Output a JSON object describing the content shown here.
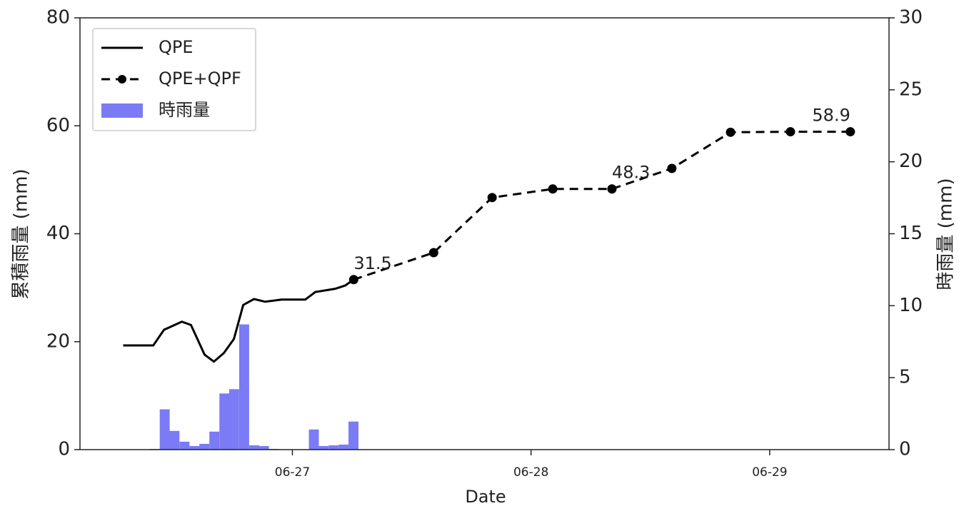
{
  "chart_data": {
    "type": "combo",
    "xlabel": "Date",
    "ylabel": "累積雨量 (mm)",
    "y2label": "時雨量 (mm)",
    "xlim": [
      26.11,
      29.5
    ],
    "xticks": [
      {
        "value": 27,
        "label": "06-27"
      },
      {
        "value": 28,
        "label": "06-28"
      },
      {
        "value": 29,
        "label": "06-29"
      }
    ],
    "ylim": [
      0,
      80
    ],
    "yticks": [
      0,
      20,
      40,
      60,
      80
    ],
    "y2lim": [
      0,
      30
    ],
    "y2ticks": [
      0,
      5,
      10,
      15,
      20,
      25,
      30
    ],
    "y2color": "#2020b0",
    "legend": "upper left",
    "series": [
      {
        "name": "QPE",
        "kind": "line",
        "style": "solid",
        "color": "#000000",
        "x": [
          26.291,
          26.417,
          26.462,
          26.537,
          26.575,
          26.632,
          26.671,
          26.713,
          26.755,
          26.794,
          26.839,
          26.886,
          26.955,
          27.054,
          27.096,
          27.179,
          27.221,
          27.257
        ],
        "values": [
          19.3,
          19.3,
          22.2,
          23.7,
          23.1,
          17.6,
          16.3,
          17.9,
          20.5,
          26.8,
          27.9,
          27.4,
          27.8,
          27.8,
          29.2,
          29.8,
          30.4,
          31.5
        ]
      },
      {
        "name": "QPE+QPF",
        "kind": "line",
        "style": "dashed",
        "markers": true,
        "color": "#000000",
        "x": [
          27.257,
          27.592,
          27.837,
          28.091,
          28.339,
          28.59,
          28.836,
          29.087,
          29.338
        ],
        "values": [
          31.5,
          36.5,
          46.7,
          48.3,
          48.3,
          52.1,
          58.8,
          58.9,
          58.9
        ]
      },
      {
        "name": "時雨量",
        "kind": "bar",
        "axis": "y2",
        "color": "#7b7bf5",
        "x": [
          26.423,
          26.465,
          26.506,
          26.548,
          26.59,
          26.631,
          26.673,
          26.715,
          26.756,
          26.798,
          26.84,
          26.881,
          26.923,
          26.965,
          27.006,
          27.048,
          27.09,
          27.131,
          27.173,
          27.215,
          27.256
        ],
        "values": [
          0.05,
          2.8,
          1.3,
          0.55,
          0.25,
          0.4,
          1.25,
          3.9,
          4.2,
          8.7,
          0.3,
          0.25,
          0.05,
          0,
          0,
          0,
          1.4,
          0.25,
          0.3,
          0.35,
          1.95
        ]
      }
    ],
    "annotations": [
      {
        "text": "31.5",
        "x": 27.257,
        "y": 31.5,
        "color": "#333333"
      },
      {
        "text": "48.3",
        "x": 28.339,
        "y": 48.3,
        "color": "#e02020"
      },
      {
        "text": "58.9",
        "x": 29.338,
        "y": 58.9,
        "color": "#c08030"
      }
    ]
  }
}
